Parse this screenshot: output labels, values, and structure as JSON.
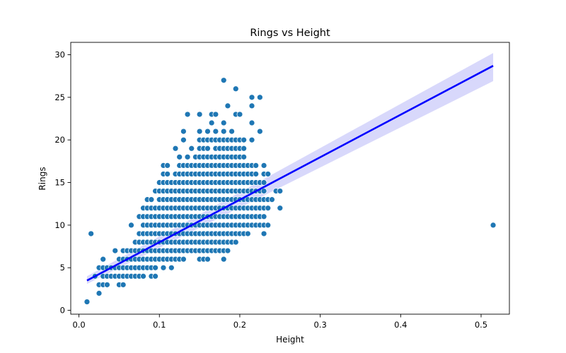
{
  "chart_data": {
    "type": "scatter",
    "title": "Rings vs Height",
    "xlabel": "Height",
    "ylabel": "Rings",
    "xlim": [
      -0.0102,
      0.5352
    ],
    "ylim": [
      -0.45,
      31.45
    ],
    "xticks": [
      "0.0",
      "0.1",
      "0.2",
      "0.3",
      "0.4",
      "0.5"
    ],
    "yticks": [
      "0",
      "5",
      "10",
      "15",
      "20",
      "25",
      "30"
    ],
    "grid": false,
    "legend": "none",
    "colors": {
      "points": "#1f77b4",
      "regression_line": "#0000ff",
      "confidence_band": "#d6d6fb"
    },
    "regression": {
      "x": [
        0.01,
        0.515
      ],
      "y": [
        3.5,
        28.7
      ],
      "ci_upper_at_max": 30.2,
      "ci_lower_at_max": 26.9,
      "ci_upper_at_min": 4.0,
      "ci_lower_at_min": 3.1
    },
    "points": [
      [
        0.01,
        1
      ],
      [
        0.015,
        9
      ],
      [
        0.02,
        4
      ],
      [
        0.025,
        2
      ],
      [
        0.025,
        5
      ],
      [
        0.025,
        3
      ],
      [
        0.03,
        3
      ],
      [
        0.03,
        4
      ],
      [
        0.03,
        5
      ],
      [
        0.03,
        6
      ],
      [
        0.035,
        3
      ],
      [
        0.035,
        4
      ],
      [
        0.035,
        5
      ],
      [
        0.04,
        4
      ],
      [
        0.04,
        5
      ],
      [
        0.045,
        4
      ],
      [
        0.045,
        5
      ],
      [
        0.045,
        7
      ],
      [
        0.05,
        3
      ],
      [
        0.05,
        4
      ],
      [
        0.05,
        5
      ],
      [
        0.05,
        6
      ],
      [
        0.055,
        3
      ],
      [
        0.055,
        4
      ],
      [
        0.055,
        5
      ],
      [
        0.055,
        6
      ],
      [
        0.055,
        7
      ],
      [
        0.06,
        4
      ],
      [
        0.06,
        5
      ],
      [
        0.06,
        6
      ],
      [
        0.06,
        7
      ],
      [
        0.065,
        4
      ],
      [
        0.065,
        5
      ],
      [
        0.065,
        6
      ],
      [
        0.065,
        7
      ],
      [
        0.065,
        10
      ],
      [
        0.07,
        4
      ],
      [
        0.07,
        5
      ],
      [
        0.07,
        6
      ],
      [
        0.07,
        7
      ],
      [
        0.07,
        8
      ],
      [
        0.075,
        4
      ],
      [
        0.075,
        5
      ],
      [
        0.075,
        6
      ],
      [
        0.075,
        7
      ],
      [
        0.075,
        8
      ],
      [
        0.075,
        9
      ],
      [
        0.075,
        11
      ],
      [
        0.08,
        4
      ],
      [
        0.08,
        5
      ],
      [
        0.08,
        6
      ],
      [
        0.08,
        7
      ],
      [
        0.08,
        8
      ],
      [
        0.08,
        9
      ],
      [
        0.08,
        10
      ],
      [
        0.08,
        11
      ],
      [
        0.08,
        12
      ],
      [
        0.085,
        5
      ],
      [
        0.085,
        6
      ],
      [
        0.085,
        7
      ],
      [
        0.085,
        8
      ],
      [
        0.085,
        9
      ],
      [
        0.085,
        10
      ],
      [
        0.085,
        11
      ],
      [
        0.085,
        12
      ],
      [
        0.085,
        13
      ],
      [
        0.09,
        4
      ],
      [
        0.09,
        5
      ],
      [
        0.09,
        6
      ],
      [
        0.09,
        7
      ],
      [
        0.09,
        8
      ],
      [
        0.09,
        9
      ],
      [
        0.09,
        10
      ],
      [
        0.09,
        11
      ],
      [
        0.09,
        12
      ],
      [
        0.09,
        13
      ],
      [
        0.095,
        4
      ],
      [
        0.095,
        5
      ],
      [
        0.095,
        6
      ],
      [
        0.095,
        7
      ],
      [
        0.095,
        8
      ],
      [
        0.095,
        9
      ],
      [
        0.095,
        10
      ],
      [
        0.095,
        11
      ],
      [
        0.095,
        12
      ],
      [
        0.095,
        14
      ],
      [
        0.1,
        6
      ],
      [
        0.1,
        7
      ],
      [
        0.1,
        8
      ],
      [
        0.1,
        9
      ],
      [
        0.1,
        10
      ],
      [
        0.1,
        11
      ],
      [
        0.1,
        12
      ],
      [
        0.1,
        13
      ],
      [
        0.1,
        14
      ],
      [
        0.1,
        15
      ],
      [
        0.105,
        5
      ],
      [
        0.105,
        6
      ],
      [
        0.105,
        7
      ],
      [
        0.105,
        8
      ],
      [
        0.105,
        9
      ],
      [
        0.105,
        10
      ],
      [
        0.105,
        11
      ],
      [
        0.105,
        12
      ],
      [
        0.105,
        13
      ],
      [
        0.105,
        14
      ],
      [
        0.105,
        15
      ],
      [
        0.105,
        16
      ],
      [
        0.105,
        17
      ],
      [
        0.11,
        6
      ],
      [
        0.11,
        7
      ],
      [
        0.11,
        8
      ],
      [
        0.11,
        9
      ],
      [
        0.11,
        10
      ],
      [
        0.11,
        11
      ],
      [
        0.11,
        12
      ],
      [
        0.11,
        13
      ],
      [
        0.11,
        14
      ],
      [
        0.11,
        15
      ],
      [
        0.11,
        16
      ],
      [
        0.11,
        17
      ],
      [
        0.115,
        5
      ],
      [
        0.115,
        6
      ],
      [
        0.115,
        7
      ],
      [
        0.115,
        8
      ],
      [
        0.115,
        9
      ],
      [
        0.115,
        10
      ],
      [
        0.115,
        11
      ],
      [
        0.115,
        12
      ],
      [
        0.115,
        13
      ],
      [
        0.115,
        14
      ],
      [
        0.115,
        15
      ],
      [
        0.12,
        6
      ],
      [
        0.12,
        7
      ],
      [
        0.12,
        8
      ],
      [
        0.12,
        9
      ],
      [
        0.12,
        10
      ],
      [
        0.12,
        11
      ],
      [
        0.12,
        12
      ],
      [
        0.12,
        13
      ],
      [
        0.12,
        14
      ],
      [
        0.12,
        15
      ],
      [
        0.12,
        16
      ],
      [
        0.12,
        19
      ],
      [
        0.125,
        6
      ],
      [
        0.125,
        7
      ],
      [
        0.125,
        8
      ],
      [
        0.125,
        9
      ],
      [
        0.125,
        10
      ],
      [
        0.125,
        11
      ],
      [
        0.125,
        12
      ],
      [
        0.125,
        13
      ],
      [
        0.125,
        14
      ],
      [
        0.125,
        15
      ],
      [
        0.125,
        16
      ],
      [
        0.125,
        17
      ],
      [
        0.125,
        18
      ],
      [
        0.13,
        6
      ],
      [
        0.13,
        7
      ],
      [
        0.13,
        8
      ],
      [
        0.13,
        9
      ],
      [
        0.13,
        10
      ],
      [
        0.13,
        11
      ],
      [
        0.13,
        12
      ],
      [
        0.13,
        13
      ],
      [
        0.13,
        14
      ],
      [
        0.13,
        15
      ],
      [
        0.13,
        16
      ],
      [
        0.13,
        17
      ],
      [
        0.13,
        20
      ],
      [
        0.13,
        21
      ],
      [
        0.135,
        7
      ],
      [
        0.135,
        8
      ],
      [
        0.135,
        9
      ],
      [
        0.135,
        10
      ],
      [
        0.135,
        11
      ],
      [
        0.135,
        12
      ],
      [
        0.135,
        13
      ],
      [
        0.135,
        14
      ],
      [
        0.135,
        15
      ],
      [
        0.135,
        16
      ],
      [
        0.135,
        17
      ],
      [
        0.135,
        18
      ],
      [
        0.135,
        23
      ],
      [
        0.14,
        7
      ],
      [
        0.14,
        8
      ],
      [
        0.14,
        9
      ],
      [
        0.14,
        10
      ],
      [
        0.14,
        11
      ],
      [
        0.14,
        12
      ],
      [
        0.14,
        13
      ],
      [
        0.14,
        14
      ],
      [
        0.14,
        15
      ],
      [
        0.14,
        16
      ],
      [
        0.14,
        17
      ],
      [
        0.14,
        19
      ],
      [
        0.145,
        7
      ],
      [
        0.145,
        8
      ],
      [
        0.145,
        9
      ],
      [
        0.145,
        10
      ],
      [
        0.145,
        11
      ],
      [
        0.145,
        12
      ],
      [
        0.145,
        13
      ],
      [
        0.145,
        14
      ],
      [
        0.145,
        15
      ],
      [
        0.145,
        16
      ],
      [
        0.145,
        17
      ],
      [
        0.145,
        18
      ],
      [
        0.15,
        6
      ],
      [
        0.15,
        7
      ],
      [
        0.15,
        8
      ],
      [
        0.15,
        9
      ],
      [
        0.15,
        10
      ],
      [
        0.15,
        11
      ],
      [
        0.15,
        12
      ],
      [
        0.15,
        13
      ],
      [
        0.15,
        14
      ],
      [
        0.15,
        15
      ],
      [
        0.15,
        16
      ],
      [
        0.15,
        17
      ],
      [
        0.15,
        18
      ],
      [
        0.15,
        19
      ],
      [
        0.15,
        20
      ],
      [
        0.15,
        21
      ],
      [
        0.15,
        23
      ],
      [
        0.155,
        6
      ],
      [
        0.155,
        7
      ],
      [
        0.155,
        8
      ],
      [
        0.155,
        9
      ],
      [
        0.155,
        10
      ],
      [
        0.155,
        11
      ],
      [
        0.155,
        12
      ],
      [
        0.155,
        13
      ],
      [
        0.155,
        14
      ],
      [
        0.155,
        15
      ],
      [
        0.155,
        16
      ],
      [
        0.155,
        17
      ],
      [
        0.155,
        18
      ],
      [
        0.155,
        19
      ],
      [
        0.155,
        20
      ],
      [
        0.16,
        6
      ],
      [
        0.16,
        7
      ],
      [
        0.16,
        8
      ],
      [
        0.16,
        9
      ],
      [
        0.16,
        10
      ],
      [
        0.16,
        11
      ],
      [
        0.16,
        12
      ],
      [
        0.16,
        13
      ],
      [
        0.16,
        14
      ],
      [
        0.16,
        15
      ],
      [
        0.16,
        16
      ],
      [
        0.16,
        17
      ],
      [
        0.16,
        18
      ],
      [
        0.16,
        19
      ],
      [
        0.16,
        20
      ],
      [
        0.16,
        21
      ],
      [
        0.165,
        7
      ],
      [
        0.165,
        8
      ],
      [
        0.165,
        9
      ],
      [
        0.165,
        10
      ],
      [
        0.165,
        11
      ],
      [
        0.165,
        12
      ],
      [
        0.165,
        13
      ],
      [
        0.165,
        14
      ],
      [
        0.165,
        15
      ],
      [
        0.165,
        16
      ],
      [
        0.165,
        17
      ],
      [
        0.165,
        18
      ],
      [
        0.165,
        20
      ],
      [
        0.165,
        22
      ],
      [
        0.165,
        23
      ],
      [
        0.17,
        7
      ],
      [
        0.17,
        8
      ],
      [
        0.17,
        9
      ],
      [
        0.17,
        10
      ],
      [
        0.17,
        11
      ],
      [
        0.17,
        12
      ],
      [
        0.17,
        13
      ],
      [
        0.17,
        14
      ],
      [
        0.17,
        15
      ],
      [
        0.17,
        16
      ],
      [
        0.17,
        17
      ],
      [
        0.17,
        18
      ],
      [
        0.17,
        19
      ],
      [
        0.17,
        20
      ],
      [
        0.17,
        21
      ],
      [
        0.17,
        23
      ],
      [
        0.175,
        7
      ],
      [
        0.175,
        8
      ],
      [
        0.175,
        9
      ],
      [
        0.175,
        10
      ],
      [
        0.175,
        11
      ],
      [
        0.175,
        12
      ],
      [
        0.175,
        13
      ],
      [
        0.175,
        14
      ],
      [
        0.175,
        15
      ],
      [
        0.175,
        16
      ],
      [
        0.175,
        17
      ],
      [
        0.175,
        18
      ],
      [
        0.175,
        19
      ],
      [
        0.175,
        20
      ],
      [
        0.18,
        6
      ],
      [
        0.18,
        7
      ],
      [
        0.18,
        8
      ],
      [
        0.18,
        9
      ],
      [
        0.18,
        10
      ],
      [
        0.18,
        11
      ],
      [
        0.18,
        12
      ],
      [
        0.18,
        13
      ],
      [
        0.18,
        14
      ],
      [
        0.18,
        15
      ],
      [
        0.18,
        16
      ],
      [
        0.18,
        17
      ],
      [
        0.18,
        18
      ],
      [
        0.18,
        19
      ],
      [
        0.18,
        20
      ],
      [
        0.18,
        21
      ],
      [
        0.18,
        22
      ],
      [
        0.18,
        27
      ],
      [
        0.185,
        7
      ],
      [
        0.185,
        8
      ],
      [
        0.185,
        9
      ],
      [
        0.185,
        10
      ],
      [
        0.185,
        11
      ],
      [
        0.185,
        12
      ],
      [
        0.185,
        13
      ],
      [
        0.185,
        14
      ],
      [
        0.185,
        15
      ],
      [
        0.185,
        16
      ],
      [
        0.185,
        17
      ],
      [
        0.185,
        18
      ],
      [
        0.185,
        19
      ],
      [
        0.185,
        20
      ],
      [
        0.185,
        24
      ],
      [
        0.19,
        8
      ],
      [
        0.19,
        9
      ],
      [
        0.19,
        10
      ],
      [
        0.19,
        11
      ],
      [
        0.19,
        12
      ],
      [
        0.19,
        13
      ],
      [
        0.19,
        14
      ],
      [
        0.19,
        15
      ],
      [
        0.19,
        16
      ],
      [
        0.19,
        17
      ],
      [
        0.19,
        18
      ],
      [
        0.19,
        19
      ],
      [
        0.19,
        20
      ],
      [
        0.19,
        21
      ],
      [
        0.195,
        8
      ],
      [
        0.195,
        9
      ],
      [
        0.195,
        10
      ],
      [
        0.195,
        11
      ],
      [
        0.195,
        12
      ],
      [
        0.195,
        13
      ],
      [
        0.195,
        14
      ],
      [
        0.195,
        15
      ],
      [
        0.195,
        16
      ],
      [
        0.195,
        17
      ],
      [
        0.195,
        18
      ],
      [
        0.195,
        19
      ],
      [
        0.195,
        20
      ],
      [
        0.195,
        23
      ],
      [
        0.195,
        26
      ],
      [
        0.2,
        9
      ],
      [
        0.2,
        10
      ],
      [
        0.2,
        11
      ],
      [
        0.2,
        12
      ],
      [
        0.2,
        13
      ],
      [
        0.2,
        14
      ],
      [
        0.2,
        15
      ],
      [
        0.2,
        16
      ],
      [
        0.2,
        17
      ],
      [
        0.2,
        18
      ],
      [
        0.2,
        19
      ],
      [
        0.2,
        20
      ],
      [
        0.2,
        23
      ],
      [
        0.205,
        9
      ],
      [
        0.205,
        10
      ],
      [
        0.205,
        11
      ],
      [
        0.205,
        12
      ],
      [
        0.205,
        13
      ],
      [
        0.205,
        14
      ],
      [
        0.205,
        15
      ],
      [
        0.205,
        16
      ],
      [
        0.205,
        17
      ],
      [
        0.205,
        18
      ],
      [
        0.205,
        19
      ],
      [
        0.205,
        20
      ],
      [
        0.21,
        9
      ],
      [
        0.21,
        10
      ],
      [
        0.21,
        11
      ],
      [
        0.21,
        12
      ],
      [
        0.21,
        13
      ],
      [
        0.21,
        14
      ],
      [
        0.21,
        15
      ],
      [
        0.21,
        16
      ],
      [
        0.21,
        17
      ],
      [
        0.215,
        10
      ],
      [
        0.215,
        11
      ],
      [
        0.215,
        12
      ],
      [
        0.215,
        13
      ],
      [
        0.215,
        14
      ],
      [
        0.215,
        15
      ],
      [
        0.215,
        16
      ],
      [
        0.215,
        17
      ],
      [
        0.215,
        20
      ],
      [
        0.215,
        22
      ],
      [
        0.215,
        24
      ],
      [
        0.215,
        25
      ],
      [
        0.22,
        10
      ],
      [
        0.22,
        11
      ],
      [
        0.22,
        12
      ],
      [
        0.22,
        13
      ],
      [
        0.22,
        14
      ],
      [
        0.22,
        15
      ],
      [
        0.22,
        16
      ],
      [
        0.22,
        17
      ],
      [
        0.225,
        10
      ],
      [
        0.225,
        11
      ],
      [
        0.225,
        12
      ],
      [
        0.225,
        13
      ],
      [
        0.225,
        14
      ],
      [
        0.225,
        15
      ],
      [
        0.225,
        21
      ],
      [
        0.225,
        25
      ],
      [
        0.23,
        9
      ],
      [
        0.23,
        10
      ],
      [
        0.23,
        11
      ],
      [
        0.23,
        12
      ],
      [
        0.23,
        13
      ],
      [
        0.23,
        14
      ],
      [
        0.23,
        15
      ],
      [
        0.23,
        16
      ],
      [
        0.23,
        17
      ],
      [
        0.235,
        10
      ],
      [
        0.235,
        12
      ],
      [
        0.235,
        13
      ],
      [
        0.235,
        16
      ],
      [
        0.24,
        13
      ],
      [
        0.245,
        14
      ],
      [
        0.25,
        12
      ],
      [
        0.25,
        14
      ],
      [
        0.515,
        10
      ]
    ]
  }
}
